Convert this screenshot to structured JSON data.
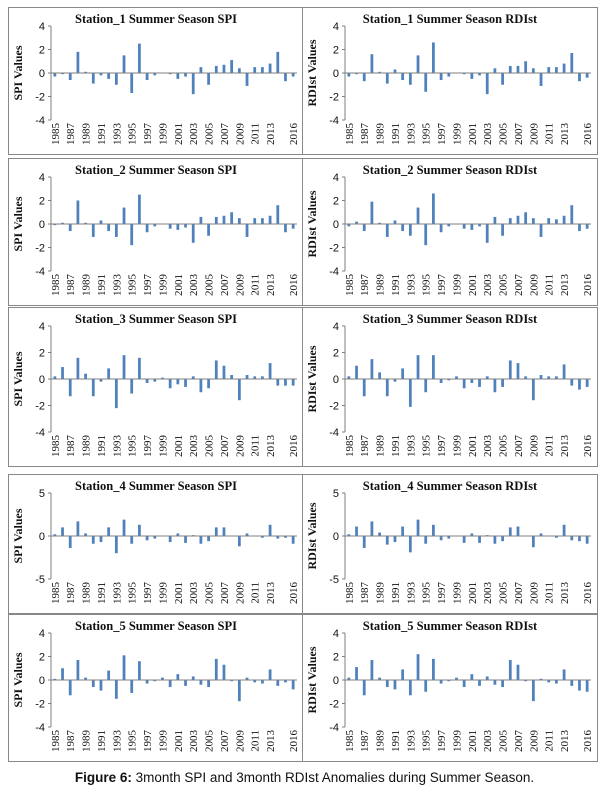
{
  "caption": {
    "label": "Figure 6:",
    "text": " 3month SPI and 3month RDIst Anomalies during Summer Season."
  },
  "colors": {
    "bar": "#4f81bd",
    "axis": "#7f7f7f",
    "text": "#111111"
  },
  "x_tick_labels": [
    "1985",
    "1987",
    "1989",
    "1991",
    "1993",
    "1995",
    "1997",
    "1999",
    "2001",
    "2003",
    "2005",
    "2007",
    "2009",
    "2011",
    "2013",
    "2016"
  ],
  "chart_data": [
    {
      "type": "bar",
      "title": "Station_1 Summer Season SPI",
      "ylabel": "SPI Values",
      "ylim": [
        -4,
        4
      ],
      "yticks": [
        4,
        2,
        0,
        -2,
        -4
      ],
      "values": [
        -0.3,
        -0.1,
        -0.6,
        1.8,
        0.1,
        -0.9,
        -0.2,
        -0.5,
        -1.0,
        1.5,
        -1.7,
        2.5,
        -0.6,
        -0.2,
        0.0,
        -0.1,
        -0.5,
        -0.3,
        -1.8,
        0.5,
        -1.0,
        0.6,
        0.7,
        1.1,
        0.4,
        -1.1,
        0.5,
        0.5,
        0.8,
        1.8,
        -0.7,
        -0.3
      ]
    },
    {
      "type": "bar",
      "title": "Station_1 Summer Season RDIst",
      "ylabel": "RDIst Values",
      "ylim": [
        -4,
        4
      ],
      "yticks": [
        4,
        2,
        0,
        -2,
        -4
      ],
      "values": [
        -0.3,
        -0.1,
        -0.7,
        1.6,
        0.1,
        -0.9,
        0.3,
        -0.6,
        -1.0,
        1.5,
        -1.6,
        2.6,
        -0.6,
        -0.3,
        0.0,
        -0.1,
        -0.5,
        -0.2,
        -1.8,
        0.4,
        -1.0,
        0.6,
        0.6,
        1.0,
        0.4,
        -1.1,
        0.5,
        0.5,
        0.8,
        1.7,
        -0.7,
        -0.4
      ]
    },
    {
      "type": "bar",
      "title": "Station_2 Summer Season SPI",
      "ylabel": "SPI Values",
      "ylim": [
        -4,
        4
      ],
      "yticks": [
        4,
        2,
        0,
        -2,
        -4
      ],
      "values": [
        -0.1,
        0.1,
        -0.6,
        2.0,
        0.1,
        -1.1,
        0.3,
        -0.6,
        -1.1,
        1.4,
        -1.8,
        2.5,
        -0.7,
        -0.2,
        0.0,
        -0.4,
        -0.5,
        -0.3,
        -1.6,
        0.6,
        -1.0,
        0.6,
        0.7,
        1.0,
        0.5,
        -1.1,
        0.5,
        0.5,
        0.7,
        1.6,
        -0.7,
        -0.4
      ]
    },
    {
      "type": "bar",
      "title": "Station_2 Summer Season RDIst",
      "ylabel": "RDIst Values",
      "ylim": [
        -4,
        4
      ],
      "yticks": [
        4,
        2,
        0,
        -2,
        -4
      ],
      "values": [
        -0.2,
        0.2,
        -0.6,
        1.9,
        0.1,
        -1.1,
        0.3,
        -0.6,
        -1.0,
        1.4,
        -1.8,
        2.6,
        -0.7,
        -0.2,
        0.0,
        -0.4,
        -0.5,
        -0.2,
        -1.6,
        0.6,
        -1.0,
        0.5,
        0.7,
        1.0,
        0.5,
        -1.1,
        0.5,
        0.4,
        0.7,
        1.6,
        -0.6,
        -0.4
      ]
    },
    {
      "type": "bar",
      "title": "Station_3 Summer Season SPI",
      "ylabel": "SPI Values",
      "ylim": [
        -4,
        4
      ],
      "yticks": [
        4,
        2,
        0,
        -2,
        -4
      ],
      "values": [
        0.2,
        0.9,
        -1.3,
        1.6,
        0.4,
        -1.3,
        -0.2,
        0.8,
        -2.2,
        1.8,
        -1.1,
        1.6,
        -0.3,
        -0.2,
        0.1,
        -0.7,
        -0.4,
        -0.6,
        0.2,
        -1.0,
        -0.7,
        1.4,
        1.0,
        0.3,
        -1.6,
        0.3,
        0.2,
        0.2,
        1.2,
        -0.5,
        -0.5,
        -0.5
      ]
    },
    {
      "type": "bar",
      "title": "Station_3 Summer Season RDIst",
      "ylabel": "RDIst Values",
      "ylim": [
        -4,
        4
      ],
      "yticks": [
        4,
        2,
        0,
        -2,
        -4
      ],
      "values": [
        0.2,
        1.0,
        -1.3,
        1.5,
        0.5,
        -1.3,
        -0.2,
        0.8,
        -2.1,
        1.8,
        -1.0,
        1.8,
        -0.3,
        -0.1,
        0.2,
        -0.7,
        -0.3,
        -0.6,
        0.2,
        -1.0,
        -0.6,
        1.4,
        1.2,
        0.2,
        -1.6,
        0.3,
        0.2,
        0.2,
        1.1,
        -0.5,
        -0.8,
        -0.6
      ]
    },
    {
      "type": "bar",
      "title": "Station_4 Summer Season SPI",
      "ylabel": "SPI Values",
      "ylim": [
        -5,
        5
      ],
      "yticks": [
        5,
        0,
        -5
      ],
      "values": [
        0.2,
        1.0,
        -1.4,
        1.7,
        0.3,
        -0.9,
        -0.7,
        1.0,
        -2.0,
        1.9,
        -0.9,
        1.3,
        -0.5,
        -0.3,
        0.0,
        -0.7,
        0.3,
        -0.8,
        0.1,
        -0.9,
        -0.6,
        1.0,
        1.0,
        0.0,
        -1.2,
        0.3,
        0.0,
        -0.2,
        1.3,
        -0.3,
        -0.2,
        -0.9
      ]
    },
    {
      "type": "bar",
      "title": "Station_4 Summer Season RDIst",
      "ylabel": "RDIst Values",
      "ylim": [
        -5,
        5
      ],
      "yticks": [
        5,
        0,
        -5
      ],
      "values": [
        0.2,
        1.1,
        -1.4,
        1.7,
        0.4,
        -1.0,
        -0.7,
        1.1,
        -1.9,
        1.9,
        -0.9,
        1.3,
        -0.5,
        -0.3,
        0.0,
        -0.8,
        0.3,
        -0.8,
        0.1,
        -0.9,
        -0.6,
        1.0,
        1.1,
        0.0,
        -1.3,
        0.3,
        0.0,
        -0.2,
        1.3,
        -0.5,
        -0.6,
        -0.9
      ]
    },
    {
      "type": "bar",
      "title": "Station_5 Summer Season SPI",
      "ylabel": "SPI Values",
      "ylim": [
        -4,
        4
      ],
      "yticks": [
        4,
        2,
        0,
        -2,
        -4
      ],
      "values": [
        0.1,
        1.0,
        -1.3,
        1.7,
        0.2,
        -0.6,
        -0.9,
        0.8,
        -1.6,
        2.1,
        -1.1,
        1.6,
        -0.3,
        -0.1,
        0.2,
        -0.6,
        0.5,
        -0.5,
        0.3,
        -0.4,
        -0.6,
        1.8,
        1.3,
        -0.1,
        -1.8,
        0.2,
        -0.2,
        -0.3,
        0.9,
        -0.5,
        -0.2,
        -0.8
      ]
    },
    {
      "type": "bar",
      "title": "Station_5 Summer Season RDIst",
      "ylabel": "RDIst Values",
      "ylim": [
        -4,
        4
      ],
      "yticks": [
        4,
        2,
        0,
        -2,
        -4
      ],
      "values": [
        0.2,
        1.1,
        -1.3,
        1.7,
        0.2,
        -0.6,
        -0.8,
        0.9,
        -1.3,
        2.2,
        -1.0,
        1.8,
        -0.3,
        -0.1,
        0.2,
        -0.6,
        0.5,
        -0.5,
        0.3,
        -0.4,
        -0.6,
        1.7,
        1.3,
        -0.1,
        -1.8,
        0.1,
        -0.2,
        -0.3,
        0.9,
        -0.5,
        -0.9,
        -1.0
      ]
    }
  ]
}
